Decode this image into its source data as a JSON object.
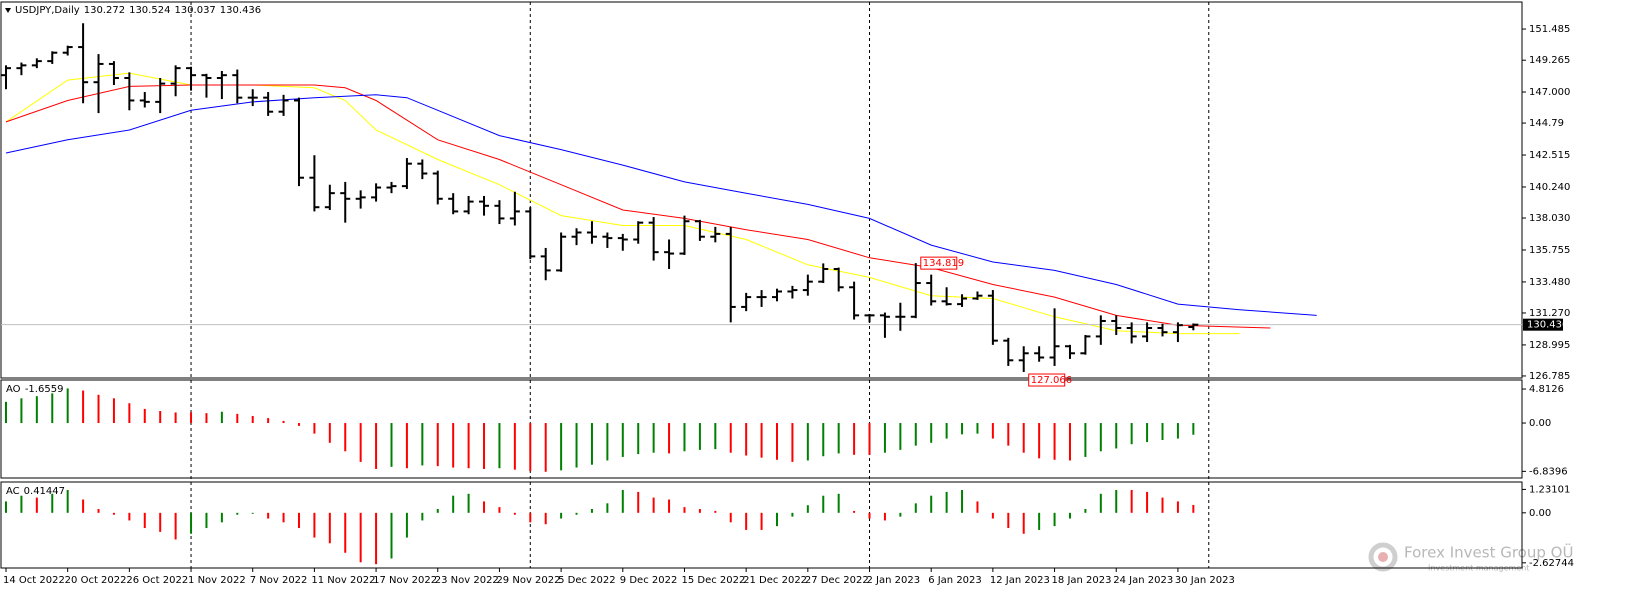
{
  "chart_data": [
    {
      "type": "ohlc",
      "title": "USDJPY,Daily",
      "categories": [
        "14 Oct 2022",
        null,
        null,
        null,
        "20 Oct 2022",
        null,
        null,
        null,
        "26 Oct 2022",
        null,
        null,
        null,
        "1 Nov 2022",
        null,
        null,
        null,
        "7 Nov 2022",
        null,
        null,
        null,
        "11 Nov 2022",
        null,
        null,
        null,
        "17 Nov 2022",
        null,
        null,
        null,
        "23 Nov 2022",
        null,
        null,
        null,
        "29 Nov 2022",
        null,
        null,
        null,
        "5 Dec 2022",
        null,
        null,
        null,
        "9 Dec 2022",
        null,
        null,
        null,
        "15 Dec 2022",
        null,
        null,
        null,
        "21 Dec 2022",
        null,
        null,
        null,
        "27 Dec 2022",
        null,
        null,
        null,
        "2 Jan 2023",
        null,
        null,
        null,
        "6 Jan 2023",
        null,
        null,
        null,
        "12 Jan 2023",
        null,
        null,
        null,
        "18 Jan 2023",
        null,
        null,
        null,
        "24 Jan 2023",
        null,
        null,
        null,
        "30 Jan 2023",
        null
      ],
      "ohlc": [
        [
          148.2,
          148.9,
          147.2,
          148.7
        ],
        [
          148.7,
          149.1,
          148.2,
          148.9
        ],
        [
          148.9,
          149.4,
          148.7,
          149.2
        ],
        [
          149.2,
          149.9,
          149.0,
          149.8
        ],
        [
          149.8,
          150.3,
          149.6,
          150.2
        ],
        [
          150.2,
          151.9,
          146.2,
          147.7
        ],
        [
          147.7,
          149.7,
          145.5,
          149.0
        ],
        [
          149.0,
          149.2,
          147.5,
          148.0
        ],
        [
          148.0,
          148.4,
          145.7,
          146.4
        ],
        [
          146.4,
          147.0,
          145.9,
          146.3
        ],
        [
          146.3,
          148.0,
          145.5,
          147.6
        ],
        [
          147.6,
          148.9,
          146.7,
          148.7
        ],
        [
          148.7,
          148.8,
          147.1,
          148.2
        ],
        [
          148.2,
          148.3,
          146.6,
          148.0
        ],
        [
          148.0,
          148.5,
          146.5,
          148.2
        ],
        [
          148.2,
          148.6,
          146.2,
          146.6
        ],
        [
          146.6,
          147.2,
          146.0,
          146.6
        ],
        [
          146.6,
          147.0,
          145.3,
          145.6
        ],
        [
          145.6,
          146.8,
          145.3,
          146.4
        ],
        [
          146.4,
          146.6,
          140.3,
          140.9
        ],
        [
          140.9,
          142.5,
          138.5,
          138.8
        ],
        [
          138.8,
          140.4,
          138.6,
          139.8
        ],
        [
          139.8,
          140.6,
          137.7,
          139.4
        ],
        [
          139.4,
          140.0,
          138.7,
          139.5
        ],
        [
          139.5,
          140.5,
          139.2,
          140.2
        ],
        [
          140.2,
          140.6,
          139.8,
          140.3
        ],
        [
          140.3,
          142.3,
          140.1,
          141.9
        ],
        [
          141.9,
          142.2,
          140.8,
          141.2
        ],
        [
          141.2,
          141.4,
          139.0,
          139.4
        ],
        [
          139.4,
          139.8,
          138.3,
          138.5
        ],
        [
          138.5,
          139.6,
          138.3,
          139.2
        ],
        [
          139.2,
          139.6,
          138.2,
          138.9
        ],
        [
          138.9,
          139.3,
          137.6,
          138.0
        ],
        [
          138.0,
          139.9,
          137.5,
          138.5
        ],
        [
          138.5,
          138.8,
          135.1,
          135.3
        ],
        [
          135.3,
          135.9,
          133.6,
          134.3
        ],
        [
          134.3,
          137.0,
          134.2,
          136.7
        ],
        [
          136.7,
          137.3,
          136.1,
          137.0
        ],
        [
          137.0,
          137.8,
          136.2,
          136.7
        ],
        [
          136.7,
          137.0,
          135.9,
          136.6
        ],
        [
          136.6,
          136.9,
          135.7,
          136.5
        ],
        [
          136.5,
          137.8,
          136.2,
          137.7
        ],
        [
          137.7,
          138.1,
          135.0,
          135.6
        ],
        [
          135.6,
          136.5,
          134.4,
          135.5
        ],
        [
          135.5,
          138.2,
          135.4,
          137.8
        ],
        [
          137.8,
          137.9,
          136.4,
          136.7
        ],
        [
          136.7,
          137.4,
          136.3,
          136.9
        ],
        [
          136.9,
          137.4,
          130.6,
          131.7
        ],
        [
          131.7,
          132.7,
          131.4,
          132.4
        ],
        [
          132.4,
          132.9,
          131.7,
          132.4
        ],
        [
          132.4,
          133.0,
          132.1,
          132.8
        ],
        [
          132.8,
          133.2,
          132.3,
          132.9
        ],
        [
          132.9,
          134.0,
          132.5,
          133.5
        ],
        [
          133.5,
          134.8,
          133.4,
          134.4
        ],
        [
          134.4,
          134.5,
          132.8,
          133.1
        ],
        [
          133.1,
          133.5,
          130.8,
          131.1
        ],
        [
          131.1,
          131.2,
          130.6,
          131.1
        ],
        [
          131.1,
          131.3,
          129.5,
          131.0
        ],
        [
          131.0,
          132.0,
          130.0,
          131.0
        ],
        [
          131.0,
          134.819,
          130.9,
          133.4
        ],
        [
          133.4,
          134.0,
          131.8,
          132.1
        ],
        [
          132.1,
          133.1,
          131.8,
          131.9
        ],
        [
          131.9,
          132.6,
          131.7,
          132.3
        ],
        [
          132.3,
          132.8,
          132.2,
          132.5
        ],
        [
          132.5,
          132.9,
          129.0,
          129.3
        ],
        [
          129.3,
          129.5,
          127.5,
          127.9
        ],
        [
          127.9,
          128.9,
          127.066,
          128.4
        ],
        [
          128.4,
          128.9,
          127.8,
          128.1
        ],
        [
          128.1,
          131.6,
          127.5,
          128.9
        ],
        [
          128.9,
          129.0,
          128.0,
          128.4
        ],
        [
          128.4,
          129.7,
          128.3,
          129.6
        ],
        [
          129.6,
          131.1,
          129.0,
          130.7
        ],
        [
          130.7,
          131.1,
          129.7,
          130.2
        ],
        [
          130.2,
          130.6,
          129.1,
          129.6
        ],
        [
          129.6,
          130.6,
          129.2,
          130.2
        ],
        [
          130.2,
          130.5,
          129.6,
          129.9
        ],
        [
          129.9,
          130.6,
          129.2,
          130.4
        ],
        [
          130.272,
          130.524,
          130.037,
          130.436
        ]
      ],
      "bar_color": "#000000",
      "series": [
        {
          "color": "#ffff00",
          "x": [
            0,
            4,
            8,
            12,
            16,
            20,
            22,
            24,
            28,
            32,
            36,
            40,
            44,
            48,
            52,
            56,
            60,
            64,
            68,
            72,
            76,
            80
          ],
          "values": [
            144.87,
            147.85,
            148.35,
            147.5,
            147.5,
            147.3,
            146.4,
            144.3,
            142.2,
            140.4,
            138.2,
            137.5,
            137.5,
            136.5,
            134.7,
            133.8,
            132.5,
            132.3,
            131.0,
            130.0,
            129.8,
            129.8
          ]
        },
        {
          "color": "#ff0000",
          "x": [
            0,
            4,
            8,
            12,
            16,
            20,
            22,
            24,
            28,
            32,
            36,
            40,
            44,
            48,
            52,
            56,
            60,
            64,
            68,
            72,
            76,
            82
          ],
          "values": [
            144.87,
            146.4,
            147.4,
            147.5,
            147.5,
            147.5,
            147.3,
            146.4,
            143.6,
            142.2,
            140.4,
            138.6,
            138.0,
            137.2,
            136.5,
            135.2,
            134.5,
            133.3,
            132.4,
            131.1,
            130.4,
            130.2
          ]
        },
        {
          "color": "#0000ff",
          "x": [
            0,
            4,
            8,
            12,
            16,
            20,
            24,
            26,
            28,
            32,
            36,
            40,
            44,
            48,
            52,
            56,
            60,
            64,
            68,
            72,
            76,
            80,
            85
          ],
          "values": [
            142.66,
            143.6,
            144.3,
            145.7,
            146.3,
            146.6,
            146.8,
            146.6,
            145.7,
            143.9,
            142.9,
            141.8,
            140.6,
            139.8,
            139.0,
            138.0,
            136.1,
            134.9,
            134.3,
            133.3,
            131.9,
            131.5,
            131.1
          ]
        }
      ],
      "ylim": [
        126.64,
        153.41
      ],
      "yticks": [
        151.485,
        149.265,
        {
          "value": 147,
          "label": "147.000"
        },
        144.79,
        142.515,
        {
          "value": 140.24,
          "label": "140.240"
        },
        {
          "value": 138.03,
          "label": "138.030"
        },
        135.755,
        {
          "value": 133.48,
          "label": "133.480"
        },
        {
          "value": 131.27,
          "label": "131.270"
        },
        128.995,
        126.785
      ]
    },
    {
      "type": "histogram",
      "title": "AO",
      "up_color": "#008000",
      "down_color": "#ff0000",
      "values": [
        3.0,
        3.5,
        3.8,
        4.2,
        4.9,
        4.6,
        4.0,
        3.5,
        2.8,
        2.0,
        1.7,
        1.5,
        1.5,
        1.4,
        1.6,
        1.3,
        1.0,
        0.7,
        0.3,
        -0.4,
        -1.5,
        -2.8,
        -4.0,
        -5.5,
        -6.5,
        -6.2,
        -6.4,
        -6.0,
        -6.1,
        -6.3,
        -6.4,
        -6.5,
        -6.4,
        -6.6,
        -6.8,
        -6.9,
        -6.7,
        -6.3,
        -5.9,
        -5.3,
        -4.8,
        -4.4,
        -4.2,
        -4.3,
        -4.0,
        -3.8,
        -3.7,
        -4.2,
        -4.6,
        -4.9,
        -5.2,
        -5.5,
        -5.3,
        -4.7,
        -4.3,
        -4.5,
        -4.5,
        -4.2,
        -3.8,
        -3.2,
        -2.8,
        -2.2,
        -1.6,
        -1.5,
        -2.2,
        -3.2,
        -4.2,
        -5.0,
        -5.2,
        -5.3,
        -4.8,
        -4.0,
        -3.6,
        -3.0,
        -2.7,
        -2.4,
        -2.2,
        -1.6559
      ],
      "ylim": [
        -7.78,
        6.09
      ],
      "yticks": [
        4.8126,
        {
          "value": 0,
          "label": "0.00"
        },
        -6.8396
      ]
    },
    {
      "type": "histogram",
      "title": "AC",
      "up_color": "#008000",
      "down_color": "#ff0000",
      "values": [
        0.6,
        0.9,
        0.8,
        1.0,
        1.2,
        0.7,
        0.2,
        -0.1,
        -0.4,
        -0.8,
        -1.0,
        -1.4,
        -1.1,
        -0.8,
        -0.5,
        -0.1,
        -0.05,
        -0.3,
        -0.5,
        -0.8,
        -1.3,
        -1.6,
        -2.1,
        -2.6,
        -2.7,
        -2.4,
        -1.3,
        -0.4,
        0.2,
        0.9,
        1.0,
        0.6,
        0.3,
        -0.1,
        -0.5,
        -0.6,
        -0.3,
        -0.1,
        0.2,
        0.5,
        1.2,
        1.1,
        0.8,
        0.7,
        0.3,
        0.2,
        0.1,
        -0.5,
        -0.9,
        -0.9,
        -0.7,
        -0.2,
        0.4,
        0.9,
        1.0,
        0.1,
        -0.3,
        -0.4,
        -0.2,
        0.5,
        0.9,
        1.1,
        1.2,
        0.6,
        -0.3,
        -0.8,
        -1.1,
        -0.9,
        -0.7,
        -0.3,
        0.2,
        1.0,
        1.2,
        1.2,
        1.1,
        0.8,
        0.6,
        0.41447
      ],
      "ylim": [
        -2.9,
        1.62
      ],
      "yticks": [
        1.23101,
        {
          "value": 0,
          "label": "0.00"
        },
        -2.62744
      ]
    }
  ],
  "watermark": {
    "name": "Forex Invest Group OÜ",
    "tagline": "Investment management"
  }
}
